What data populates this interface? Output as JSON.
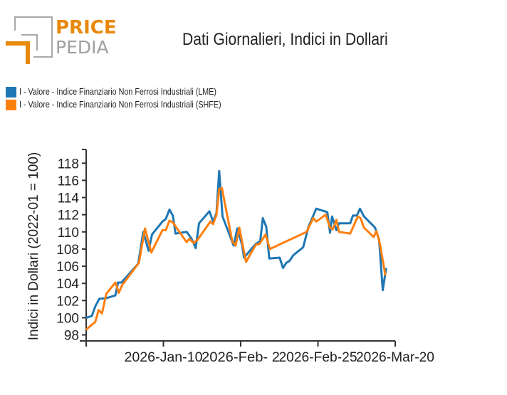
{
  "logo": {
    "line1": "PRICE",
    "line2": "PEDIA",
    "colors": {
      "orange": "#e8890c",
      "gray": "#a0a0a0"
    }
  },
  "header": {
    "title": "Dati Giornalieri, Indici in Dollari"
  },
  "legend": {
    "items": [
      {
        "label": "I - Valore - Indice Finanziario Non Ferrosi Industriali (LME)",
        "color": "#1f77b4"
      },
      {
        "label": "I - Valore - Indice Finanziario Non Ferrosi Industriali (SHFE)",
        "color": "#ff7f0e"
      }
    ]
  },
  "chart_data": {
    "type": "line",
    "title": "Dati Giornalieri, Indici in Dollari",
    "xlabel": "",
    "ylabel": "Indici in Dollari (2022-01 = 100)",
    "x_unit": "days since 2025-Dec-18",
    "xlim": [
      0,
      92
    ],
    "ylim": [
      97.3,
      119.6
    ],
    "x_ticks": [
      {
        "x": 0,
        "label": ""
      },
      {
        "x": 23,
        "label": "2026-Jan-10"
      },
      {
        "x": 46,
        "label": "2026-Feb- 2"
      },
      {
        "x": 69,
        "label": "2026-Feb-25"
      },
      {
        "x": 92,
        "label": "2026-Mar-20"
      }
    ],
    "y_ticks": [
      98,
      100,
      102,
      104,
      106,
      108,
      110,
      112,
      114,
      116,
      118
    ],
    "grid": false,
    "legend_position": "top-left",
    "series": [
      {
        "name": "I - Valore - Indice Finanziario Non Ferrosi Industriali (LME)",
        "color": "#1f77b4",
        "x": [
          0,
          1.7,
          2.7,
          3.9,
          6.2,
          8.7,
          9.5,
          10.5,
          15.5,
          17.0,
          18.6,
          19.6,
          22.7,
          23.7,
          24.8,
          25.8,
          26.6,
          29.9,
          31.4,
          32.6,
          33.6,
          36.7,
          37.8,
          38.8,
          39.6,
          40.6,
          43.9,
          45.0,
          46.4,
          47.0,
          50.5,
          51.8,
          52.6,
          53.6,
          54.5,
          57.6,
          58.6,
          59.6,
          60.5,
          61.7,
          64.6,
          66.2,
          68.5,
          71.8,
          72.6,
          73.2,
          74.5,
          75.3,
          78.6,
          79.4,
          80.6,
          81.5,
          82.7,
          86.0,
          87.2,
          88.3,
          89.3
        ],
        "values": [
          100.0,
          100.2,
          101.3,
          102.2,
          102.3,
          102.6,
          104.1,
          104.1,
          106.3,
          110.0,
          107.8,
          109.7,
          111.2,
          111.5,
          112.6,
          111.9,
          109.8,
          110.0,
          109.2,
          108.1,
          111.0,
          112.4,
          111.2,
          112.2,
          117.1,
          111.8,
          108.4,
          110.4,
          108.5,
          107.0,
          108.6,
          108.9,
          111.6,
          110.6,
          106.9,
          107.0,
          105.8,
          106.4,
          106.6,
          107.3,
          108.2,
          110.6,
          112.7,
          112.3,
          109.9,
          111.8,
          110.2,
          111.0,
          111.0,
          111.9,
          111.9,
          112.7,
          111.8,
          110.5,
          109.1,
          103.2,
          105.8
        ]
      },
      {
        "name": "I - Valore - Indice Finanziario Non Ferrosi Industriali (SHFE)",
        "color": "#ff7f0e",
        "x": [
          0,
          1.4,
          2.7,
          3.7,
          4.7,
          6.0,
          8.7,
          9.7,
          10.7,
          15.7,
          17.5,
          19.4,
          22.7,
          23.7,
          24.8,
          25.8,
          27.4,
          29.9,
          30.7,
          32.0,
          33.2,
          37.0,
          37.8,
          38.8,
          39.6,
          40.4,
          43.5,
          44.5,
          45.6,
          47.6,
          50.5,
          51.6,
          53.4,
          54.7,
          65.6,
          67.6,
          68.5,
          71.3,
          72.6,
          73.4,
          74.5,
          75.3,
          78.6,
          80.9,
          81.7,
          82.7,
          85.6,
          86.4,
          87.4,
          89.1
        ],
        "values": [
          98.6,
          99.1,
          99.5,
          100.9,
          100.5,
          102.8,
          104.1,
          102.9,
          103.8,
          106.4,
          110.4,
          107.6,
          110.2,
          110.2,
          111.3,
          111.1,
          110.2,
          108.8,
          109.2,
          108.7,
          109.1,
          111.2,
          110.9,
          112.0,
          115.0,
          115.1,
          108.9,
          108.4,
          110.5,
          106.5,
          108.5,
          108.6,
          109.7,
          108.0,
          110.0,
          111.6,
          111.2,
          112.0,
          110.5,
          110.3,
          111.4,
          110.0,
          109.8,
          111.8,
          111.6,
          110.5,
          109.4,
          110.1,
          108.7,
          104.9
        ]
      }
    ]
  }
}
